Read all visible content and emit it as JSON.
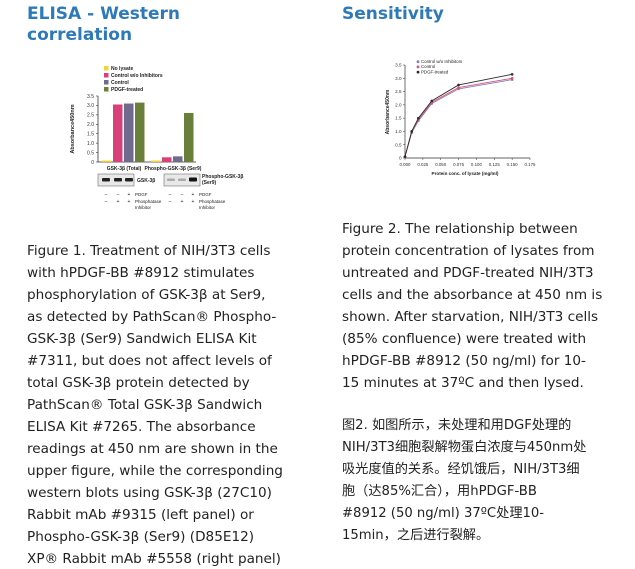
{
  "figure1": {
    "heading_lines": [
      "ELISA - Western",
      "correlation"
    ],
    "chart_data": {
      "type": "bar",
      "ylabel": "Absorbance450nm",
      "ylim": [
        0,
        3.5
      ],
      "yticks": [
        "0",
        "0.5",
        "1.0",
        "1.5",
        "2.0",
        "2.5",
        "3.0",
        "3.5"
      ],
      "groups": [
        "GSK-3β (Total)",
        "Phospho-GSK-3β (Ser9)"
      ],
      "series": [
        {
          "name": "No lysate",
          "color": "#f2d33c",
          "values": [
            0.08,
            0.08
          ]
        },
        {
          "name": "Control w/o Inhibitors",
          "color": "#d9407a",
          "values": [
            3.05,
            0.25
          ]
        },
        {
          "name": "Control",
          "color": "#6f6a8e",
          "values": [
            3.1,
            0.3
          ]
        },
        {
          "name": "PDGF-treated",
          "color": "#6a7f3a",
          "values": [
            3.15,
            2.6
          ]
        }
      ]
    },
    "blot": {
      "left_label": "GSK-3β",
      "right_label_lines": [
        "Phospho-GSK-3β",
        "(Ser9)"
      ],
      "row_labels": [
        "PDGF",
        "Phosphatase",
        "Inhibitor"
      ],
      "pdgf_marks": [
        "–",
        "–",
        "+",
        "–",
        "–",
        "+"
      ],
      "inhibitor_marks": [
        "–",
        "+",
        "+",
        "–",
        "+",
        "+"
      ]
    },
    "caption_lines": [
      "Figure 1. Treatment of NIH/3T3 cells",
      "with hPDGF-BB #8912 stimulates",
      "phosphorylation of GSK-3β at Ser9,",
      "as detected by PathScan® Phospho-",
      "GSK-3β (Ser9) Sandwich ELISA Kit",
      "#7311, but does not affect levels of",
      "total GSK-3β protein detected by",
      "PathScan® Total GSK-3β Sandwich",
      "ELISA Kit #7265. The absorbance",
      "readings at 450 nm are shown in the",
      "upper figure, while the corresponding",
      "western blots using GSK-3β (27C10)",
      "Rabbit mAb #9315 (left panel) or",
      "Phospho-GSK-3β (Ser9) (D85E12)",
      "XP® Rabbit mAb #5558 (right panel)"
    ]
  },
  "figure2": {
    "heading": "Sensitivity",
    "chart_data": {
      "type": "line",
      "xlabel": "Protein conc. of lysate (mg/ml)",
      "ylabel": "Absorbance450nm",
      "xlim": [
        0,
        0.175
      ],
      "ylim": [
        0,
        3.5
      ],
      "xticks": [
        "0.000",
        "0.025",
        "0.050",
        "0.075",
        "0.100",
        "0.125",
        "0.150",
        "0.175"
      ],
      "yticks": [
        "0",
        "0.5",
        "1.0",
        "1.5",
        "2.0",
        "2.5",
        "3.0",
        "3.5"
      ],
      "x": [
        0,
        0.009375,
        0.01875,
        0.0375,
        0.075,
        0.15
      ],
      "series": [
        {
          "name": "Control w/o Inhibitors",
          "color": "#7f7fbf",
          "values": [
            0.05,
            0.95,
            1.4,
            2.05,
            2.6,
            2.95
          ]
        },
        {
          "name": "Control",
          "color": "#e05070",
          "values": [
            0.05,
            1.0,
            1.45,
            2.1,
            2.65,
            3.0
          ]
        },
        {
          "name": "PDGF-treated",
          "color": "#2a2a2a",
          "values": [
            0.05,
            1.0,
            1.5,
            2.15,
            2.75,
            3.15
          ]
        }
      ]
    },
    "caption_lines": [
      "Figure 2. The relationship between",
      "protein concentration of lysates from",
      "untreated and PDGF-treated NIH/3T3",
      "cells and the absorbance at 450 nm is",
      "shown. After starvation, NIH/3T3 cells",
      "(85% confluence) were treated with",
      "hPDGF-BB #8912 (50 ng/ml) for 10-",
      "15 minutes at 37ºC and then lysed."
    ],
    "caption_cn_lines": [
      "图2. 如图所示，未处理和用DGF处理的",
      "NIH/3T3细胞裂解物蛋白浓度与450nm处",
      "吸光度值的关系。经饥饿后，NIH/3T3细",
      "胞（达85%汇合），用hPDGF-BB",
      "#8912 (50 ng/ml) 37ºC处理10-",
      "15min，之后进行裂解。"
    ]
  }
}
